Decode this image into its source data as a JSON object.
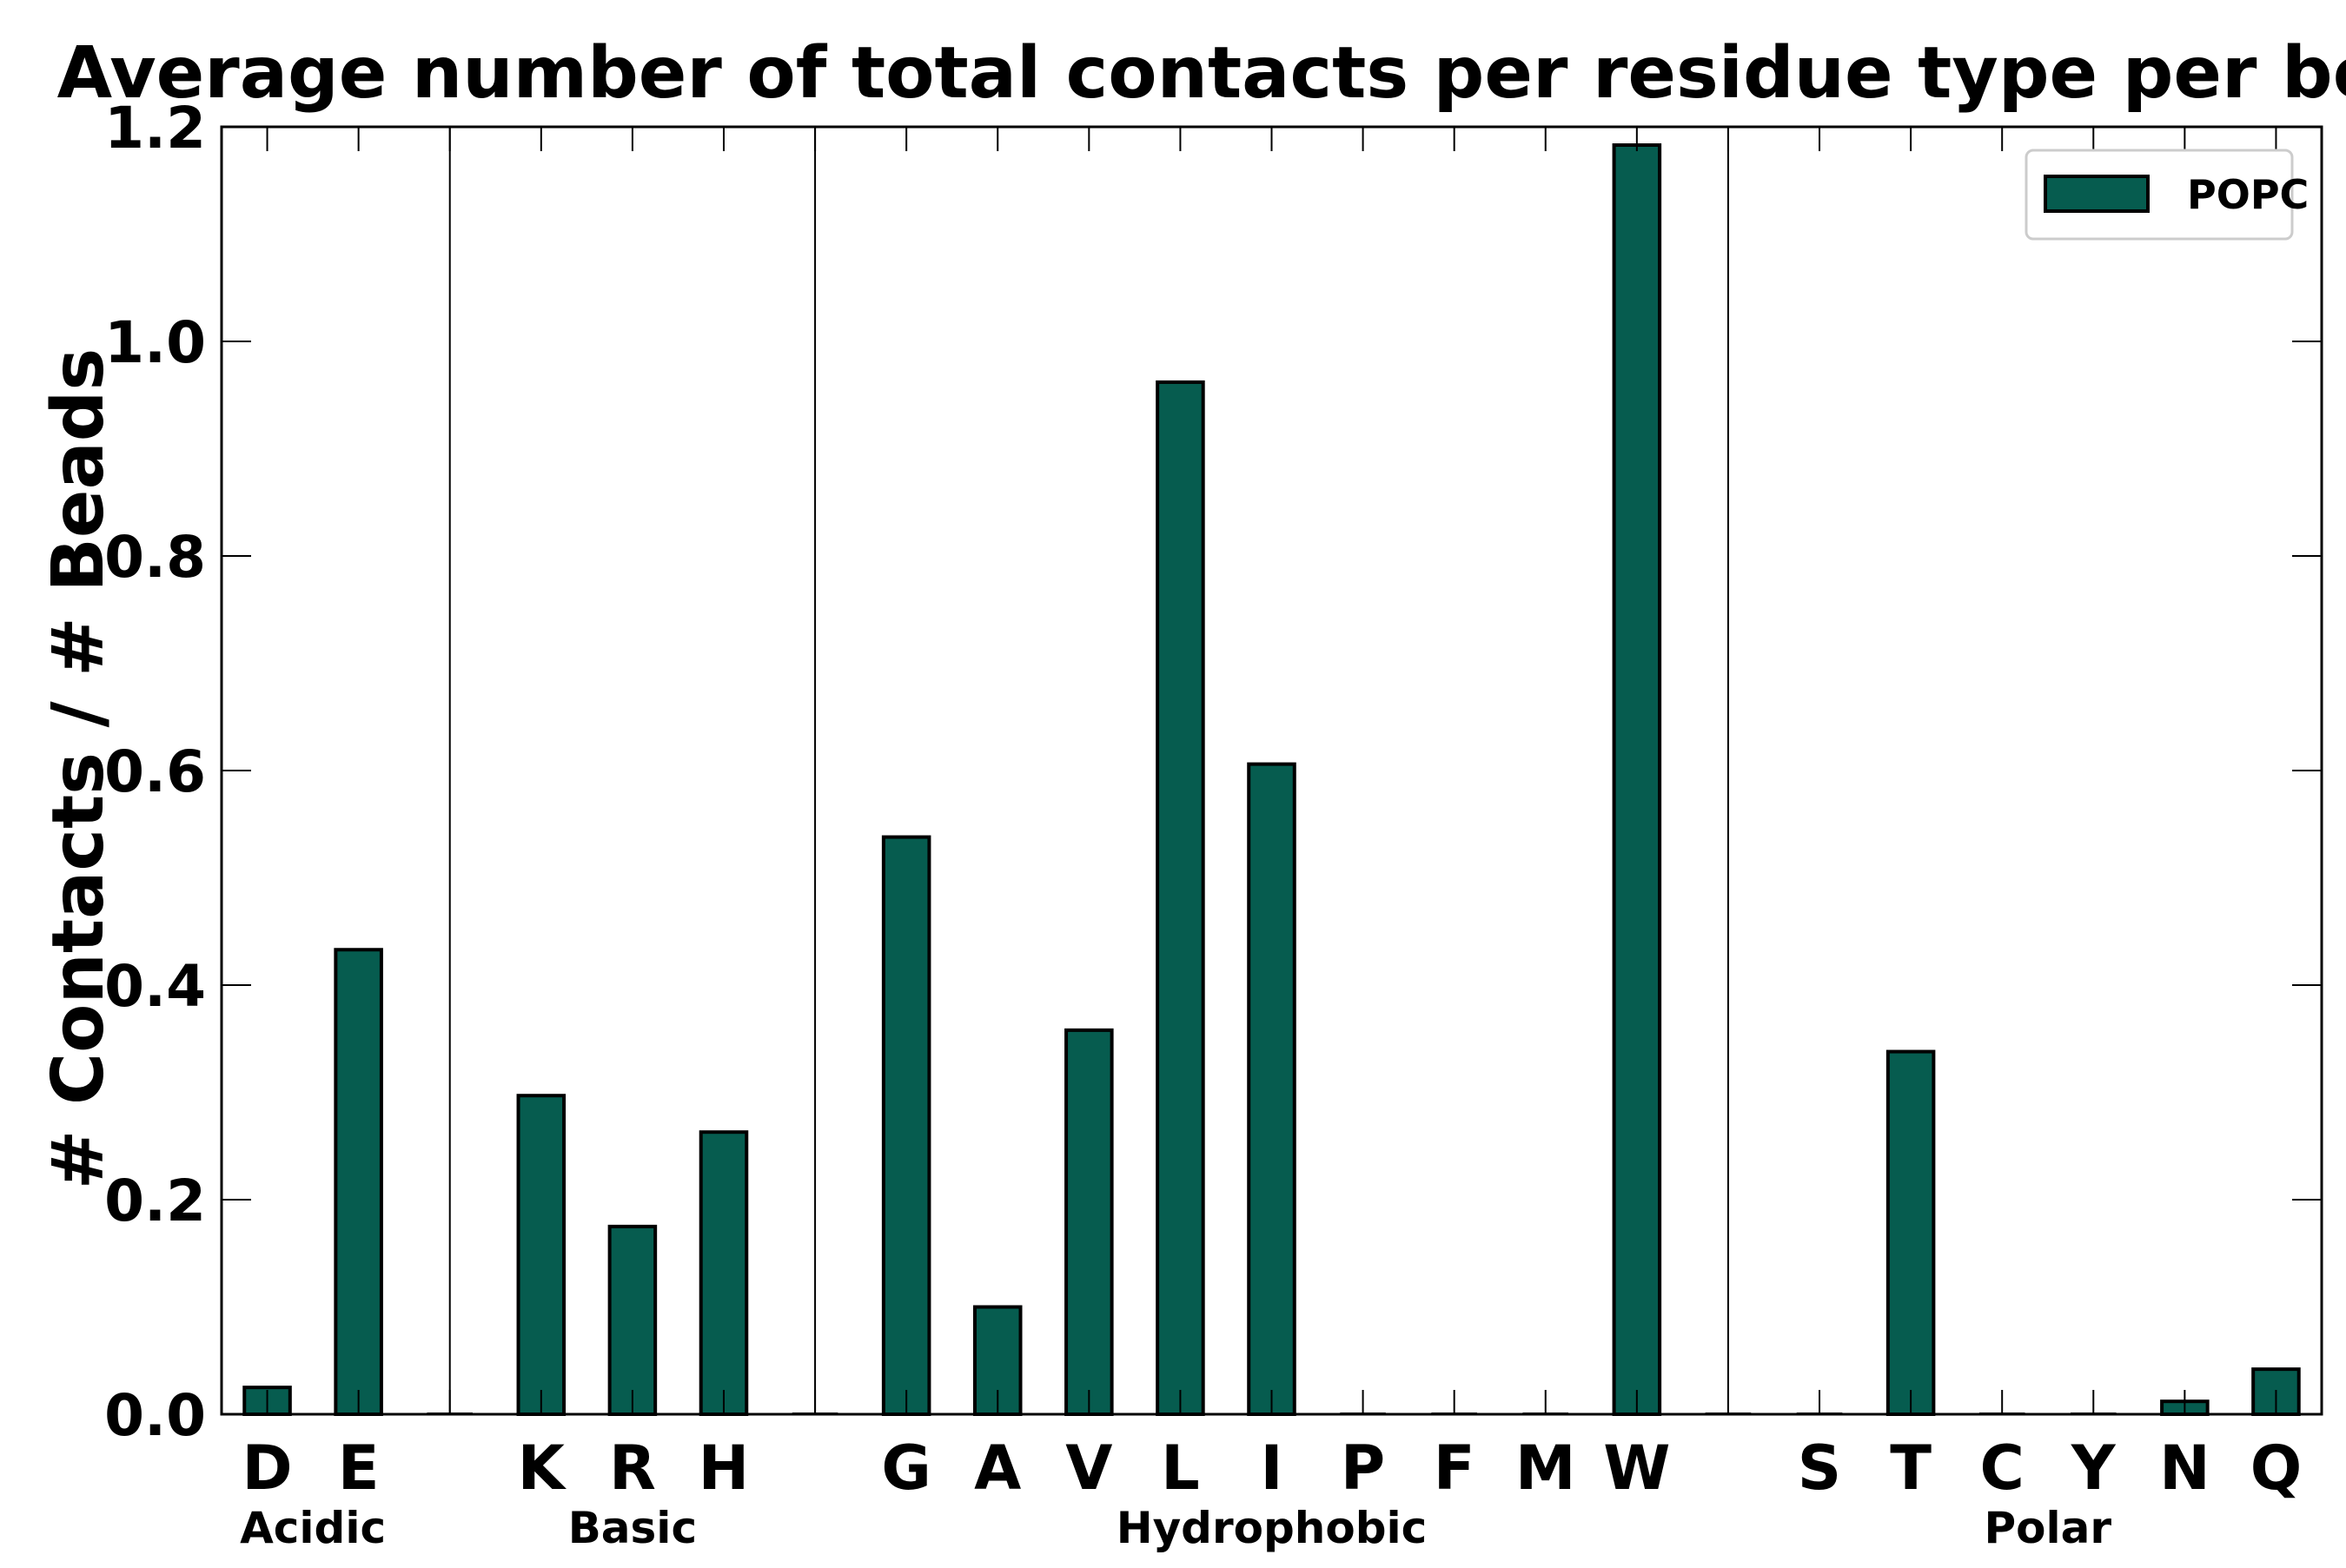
{
  "chart_data": {
    "type": "bar",
    "title": "Average number of total contacts per residue type per bead",
    "ylabel": "# Contacts / # Beads",
    "xlabel": "",
    "ylim": [
      0,
      1.2
    ],
    "yticks": [
      "0.0",
      "0.2",
      "0.4",
      "0.6",
      "0.8",
      "1.0",
      "1.2"
    ],
    "categories": [
      "D",
      "E",
      "",
      "K",
      "R",
      "H",
      "",
      "G",
      "A",
      "V",
      "L",
      "I",
      "P",
      "F",
      "M",
      "W",
      "",
      "S",
      "T",
      "C",
      "Y",
      "N",
      "Q"
    ],
    "series": [
      {
        "name": "POPC",
        "color": "#065c4f",
        "values": [
          0.025,
          0.433,
          0,
          0.297,
          0.175,
          0.263,
          0,
          0.538,
          0.1,
          0.358,
          0.962,
          0.606,
          0,
          0,
          0,
          1.183,
          0,
          0,
          0.338,
          0,
          0,
          0.012,
          0.042
        ]
      }
    ],
    "groups": [
      {
        "label": "Acidic",
        "start": 0,
        "end": 1
      },
      {
        "label": "Basic",
        "start": 3,
        "end": 5
      },
      {
        "label": "Hydrophobic",
        "start": 7,
        "end": 15
      },
      {
        "label": "Polar",
        "start": 17,
        "end": 22
      }
    ],
    "separators_after": [
      2,
      6,
      16
    ],
    "legend_position": "top-right",
    "grid": false
  }
}
